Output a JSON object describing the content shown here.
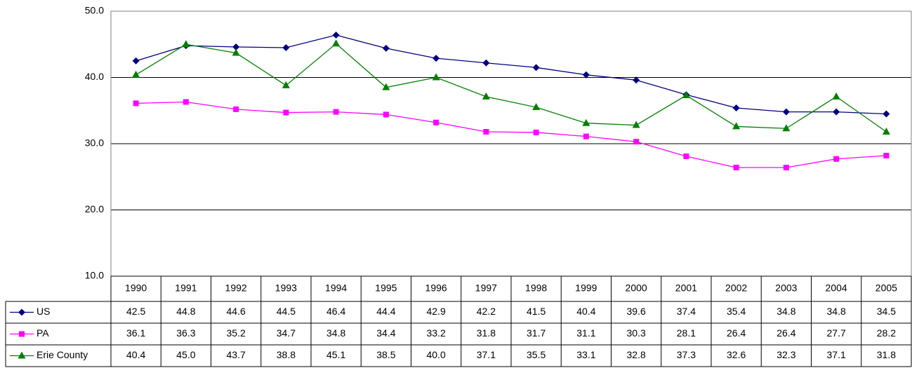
{
  "chart_data": {
    "type": "line",
    "categories": [
      "1990",
      "1991",
      "1992",
      "1993",
      "1994",
      "1995",
      "1996",
      "1997",
      "1998",
      "1999",
      "2000",
      "2001",
      "2002",
      "2003",
      "2004",
      "2005"
    ],
    "series": [
      {
        "name": "US",
        "color": "#000080",
        "marker": "diamond",
        "values": [
          42.5,
          44.8,
          44.6,
          44.5,
          46.4,
          44.4,
          42.9,
          42.2,
          41.5,
          40.4,
          39.6,
          37.4,
          35.4,
          34.8,
          34.8,
          34.5
        ],
        "value_labels": [
          "42.5",
          "44.8",
          "44.6",
          "44.5",
          "46.4",
          "44.4",
          "42.9",
          "42.2",
          "41.5",
          "40.4",
          "39.6",
          "37.4",
          "35.4",
          "34.8",
          "34.8",
          "34.5"
        ]
      },
      {
        "name": "PA",
        "color": "#ff00ff",
        "marker": "square",
        "values": [
          36.1,
          36.3,
          35.2,
          34.7,
          34.8,
          34.4,
          33.2,
          31.8,
          31.7,
          31.1,
          30.3,
          28.1,
          26.4,
          26.4,
          27.7,
          28.2
        ],
        "value_labels": [
          "36.1",
          "36.3",
          "35.2",
          "34.7",
          "34.8",
          "34.4",
          "33.2",
          "31.8",
          "31.7",
          "31.1",
          "30.3",
          "28.1",
          "26.4",
          "26.4",
          "27.7",
          "28.2"
        ]
      },
      {
        "name": "Erie County",
        "color": "#008000",
        "marker": "triangle",
        "values": [
          40.4,
          45.0,
          43.7,
          38.8,
          45.1,
          38.5,
          40.0,
          37.1,
          35.5,
          33.1,
          32.8,
          37.3,
          32.6,
          32.3,
          37.1,
          31.8
        ],
        "value_labels": [
          "40.4",
          "45.0",
          "43.7",
          "38.8",
          "45.1",
          "38.5",
          "40.0",
          "37.1",
          "35.5",
          "33.1",
          "32.8",
          "37.3",
          "32.6",
          "32.3",
          "37.1",
          "31.8"
        ]
      }
    ],
    "ylim": [
      10,
      50
    ],
    "yticks": [
      {
        "value": 10,
        "label": "10.0"
      },
      {
        "value": 20,
        "label": "20.0"
      },
      {
        "value": 30,
        "label": "30.0"
      },
      {
        "value": 40,
        "label": "40.0"
      },
      {
        "value": 50,
        "label": "50.0"
      }
    ],
    "grid": true,
    "data_table": true
  }
}
